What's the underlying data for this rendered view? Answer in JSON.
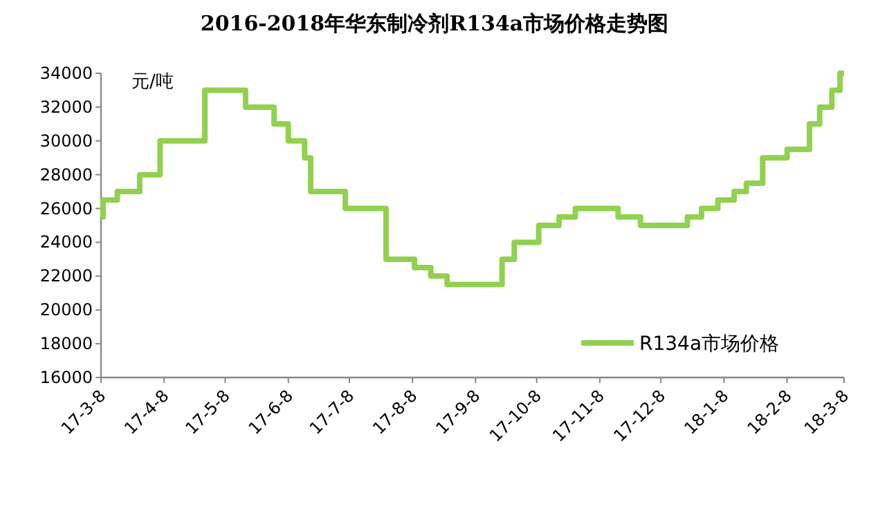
{
  "chart_data": {
    "type": "step",
    "title": "2016-2018年华东制冷剂R134a市场价格走势图",
    "ylabel": "元/吨",
    "xlim": [
      "2017-03-08",
      "2018-03-08"
    ],
    "xticks": [
      {
        "value": "2017-03-08",
        "label": "17-3-8"
      },
      {
        "value": "2017-04-08",
        "label": "17-4-8"
      },
      {
        "value": "2017-05-08",
        "label": "17-5-8"
      },
      {
        "value": "2017-06-08",
        "label": "17-6-8"
      },
      {
        "value": "2017-07-08",
        "label": "17-7-8"
      },
      {
        "value": "2017-08-08",
        "label": "17-8-8"
      },
      {
        "value": "2017-09-08",
        "label": "17-9-8"
      },
      {
        "value": "2017-10-08",
        "label": "17-10-8"
      },
      {
        "value": "2017-11-08",
        "label": "17-11-8"
      },
      {
        "value": "2017-12-08",
        "label": "17-12-8"
      },
      {
        "value": "2018-01-08",
        "label": "18-1-8"
      },
      {
        "value": "2018-02-08",
        "label": "18-2-8"
      },
      {
        "value": "2018-03-08",
        "label": "18-3-8"
      }
    ],
    "ylim": [
      16000,
      34000
    ],
    "yticks": [
      16000,
      18000,
      20000,
      22000,
      24000,
      26000,
      28000,
      30000,
      32000,
      34000
    ],
    "grid": false,
    "legend": "bottom right",
    "marker": "none",
    "line_style": "solid",
    "x": [
      "2017-03-08",
      "2017-03-09",
      "2017-03-16",
      "2017-03-27",
      "2017-04-06",
      "2017-04-28",
      "2017-05-18",
      "2017-06-01",
      "2017-06-08",
      "2017-06-16",
      "2017-06-19",
      "2017-07-06",
      "2017-07-26",
      "2017-08-09",
      "2017-08-17",
      "2017-08-25",
      "2017-09-21",
      "2017-09-27",
      "2017-10-09",
      "2017-10-19",
      "2017-10-27",
      "2017-11-17",
      "2017-11-28",
      "2017-12-21",
      "2017-12-28",
      "2018-01-05",
      "2018-01-13",
      "2018-01-19",
      "2018-01-27",
      "2018-02-08",
      "2018-02-19",
      "2018-02-24",
      "2018-03-02",
      "2018-03-06",
      "2018-03-08"
    ],
    "series": [
      {
        "name": "R134a市场价格",
        "color": "#92d050",
        "values": [
          25500,
          26500,
          27000,
          28000,
          30000,
          33000,
          32000,
          31000,
          30000,
          29000,
          27000,
          26000,
          23000,
          22500,
          22000,
          21500,
          23000,
          24000,
          25000,
          25500,
          26000,
          25500,
          25000,
          25500,
          26000,
          26500,
          27000,
          27500,
          29000,
          29500,
          31000,
          32000,
          33000,
          34000,
          34000
        ]
      }
    ]
  }
}
